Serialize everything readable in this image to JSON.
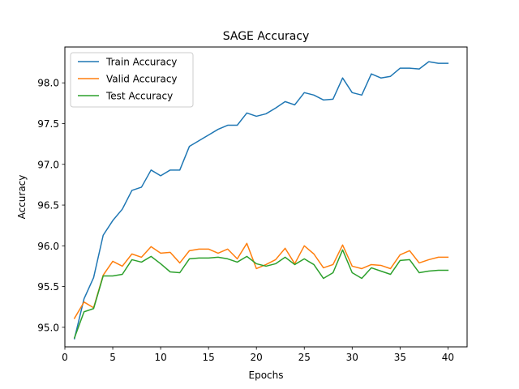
{
  "chart_data": {
    "type": "line",
    "title": "SAGE Accuracy",
    "xlabel": "Epochs",
    "ylabel": "Accuracy",
    "xlim": [
      0.0,
      42.0
    ],
    "ylim": [
      94.76,
      98.44
    ],
    "xticks": [
      0,
      5,
      10,
      15,
      20,
      25,
      30,
      35,
      40
    ],
    "yticks": [
      95.0,
      95.5,
      96.0,
      96.5,
      97.0,
      97.5,
      98.0
    ],
    "ytick_labels": [
      "95.0",
      "95.5",
      "96.0",
      "96.5",
      "97.0",
      "97.5",
      "98.0"
    ],
    "grid": false,
    "legend_position": "upper-left",
    "x": [
      1,
      2,
      3,
      4,
      5,
      6,
      7,
      8,
      9,
      10,
      11,
      12,
      13,
      14,
      15,
      16,
      17,
      18,
      19,
      20,
      21,
      22,
      23,
      24,
      25,
      26,
      27,
      28,
      29,
      30,
      31,
      32,
      33,
      34,
      35,
      36,
      37,
      38,
      39,
      40
    ],
    "series": [
      {
        "name": "Train Accuracy",
        "color": "#1f77b4",
        "values": [
          94.86,
          95.35,
          95.61,
          96.13,
          96.31,
          96.45,
          96.68,
          96.72,
          96.93,
          96.86,
          96.93,
          96.93,
          97.22,
          97.29,
          97.36,
          97.43,
          97.48,
          97.48,
          97.63,
          97.59,
          97.62,
          97.69,
          97.77,
          97.73,
          97.88,
          97.85,
          97.79,
          97.8,
          98.06,
          97.88,
          97.85,
          98.11,
          98.06,
          98.08,
          98.18,
          98.18,
          98.17,
          98.26,
          98.24,
          98.24
        ]
      },
      {
        "name": "Valid Accuracy",
        "color": "#ff7f0e",
        "values": [
          95.11,
          95.31,
          95.24,
          95.64,
          95.81,
          95.75,
          95.9,
          95.86,
          95.99,
          95.91,
          95.92,
          95.79,
          95.94,
          95.96,
          95.96,
          95.91,
          95.96,
          95.84,
          96.03,
          95.72,
          95.77,
          95.83,
          95.97,
          95.78,
          96.0,
          95.9,
          95.73,
          95.77,
          96.01,
          95.75,
          95.72,
          95.77,
          95.76,
          95.72,
          95.89,
          95.94,
          95.79,
          95.83,
          95.86,
          95.86
        ]
      },
      {
        "name": "Test Accuracy",
        "color": "#2ca02c",
        "values": [
          94.87,
          95.19,
          95.23,
          95.63,
          95.63,
          95.65,
          95.83,
          95.8,
          95.87,
          95.78,
          95.68,
          95.67,
          95.84,
          95.85,
          95.85,
          95.86,
          95.84,
          95.8,
          95.87,
          95.78,
          95.75,
          95.78,
          95.86,
          95.77,
          95.84,
          95.77,
          95.6,
          95.67,
          95.95,
          95.67,
          95.6,
          95.73,
          95.69,
          95.65,
          95.82,
          95.83,
          95.67,
          95.69,
          95.7,
          95.7
        ]
      }
    ]
  }
}
